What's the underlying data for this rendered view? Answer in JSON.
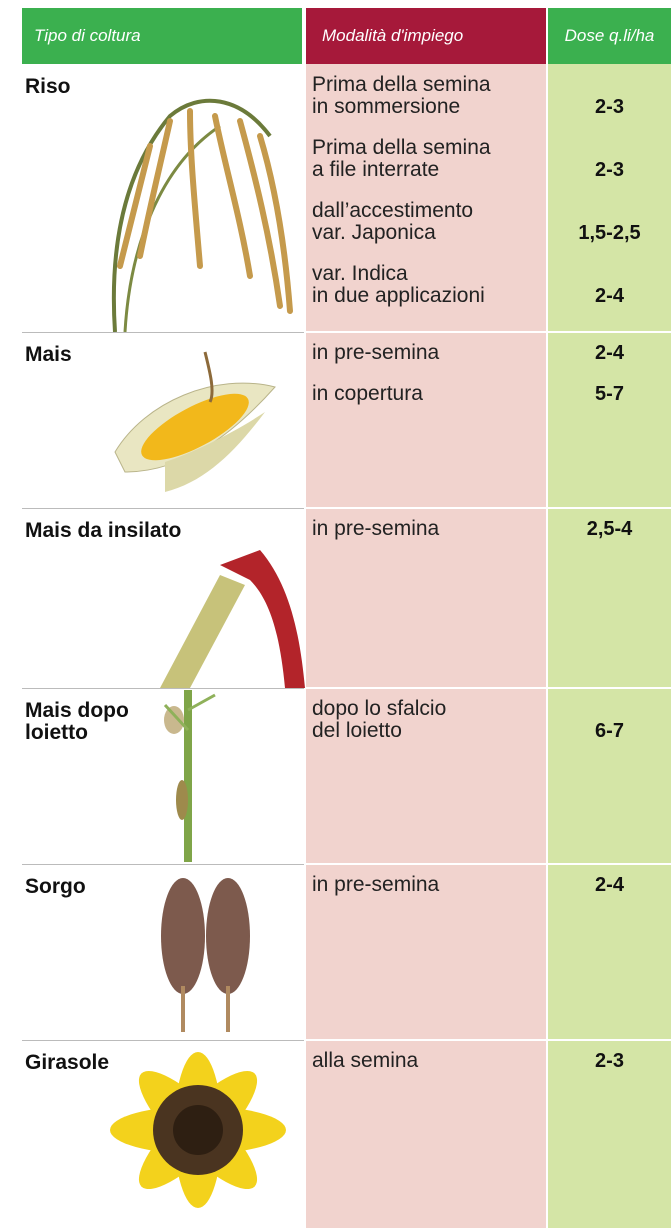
{
  "header": {
    "crop": "Tipo di coltura",
    "method": "Modalità d'impiego",
    "dose": "Dose q.li/ha"
  },
  "table": {
    "rows": [
      {
        "crop": "Riso",
        "applications": [
          {
            "method": "Prima della semina\nin sommersione",
            "dose": "2-3"
          },
          {
            "method": "Prima della semina\na file interrate",
            "dose": "2-3"
          },
          {
            "method": "dall’accestimento\nvar. Japonica",
            "dose": "1,5-2,5"
          },
          {
            "method": "var. Indica\nin due applicazioni",
            "dose": "2-4"
          }
        ]
      },
      {
        "crop": "Mais",
        "applications": [
          {
            "method": "in pre-semina",
            "dose": "2-4"
          },
          {
            "method": "in copertura",
            "dose": "5-7"
          }
        ]
      },
      {
        "crop": "Mais da insilato",
        "applications": [
          {
            "method": "in pre-semina",
            "dose": "2,5-4"
          }
        ]
      },
      {
        "crop": "Mais dopo\nloietto",
        "applications": [
          {
            "method": "dopo lo sfalcio\ndel loietto",
            "dose": "6-7"
          }
        ]
      },
      {
        "crop": "Sorgo",
        "applications": [
          {
            "method": "in pre-semina",
            "dose": "2-4"
          }
        ]
      },
      {
        "crop": "Girasole",
        "applications": [
          {
            "method": "alla semina",
            "dose": "2-3"
          }
        ]
      }
    ]
  }
}
